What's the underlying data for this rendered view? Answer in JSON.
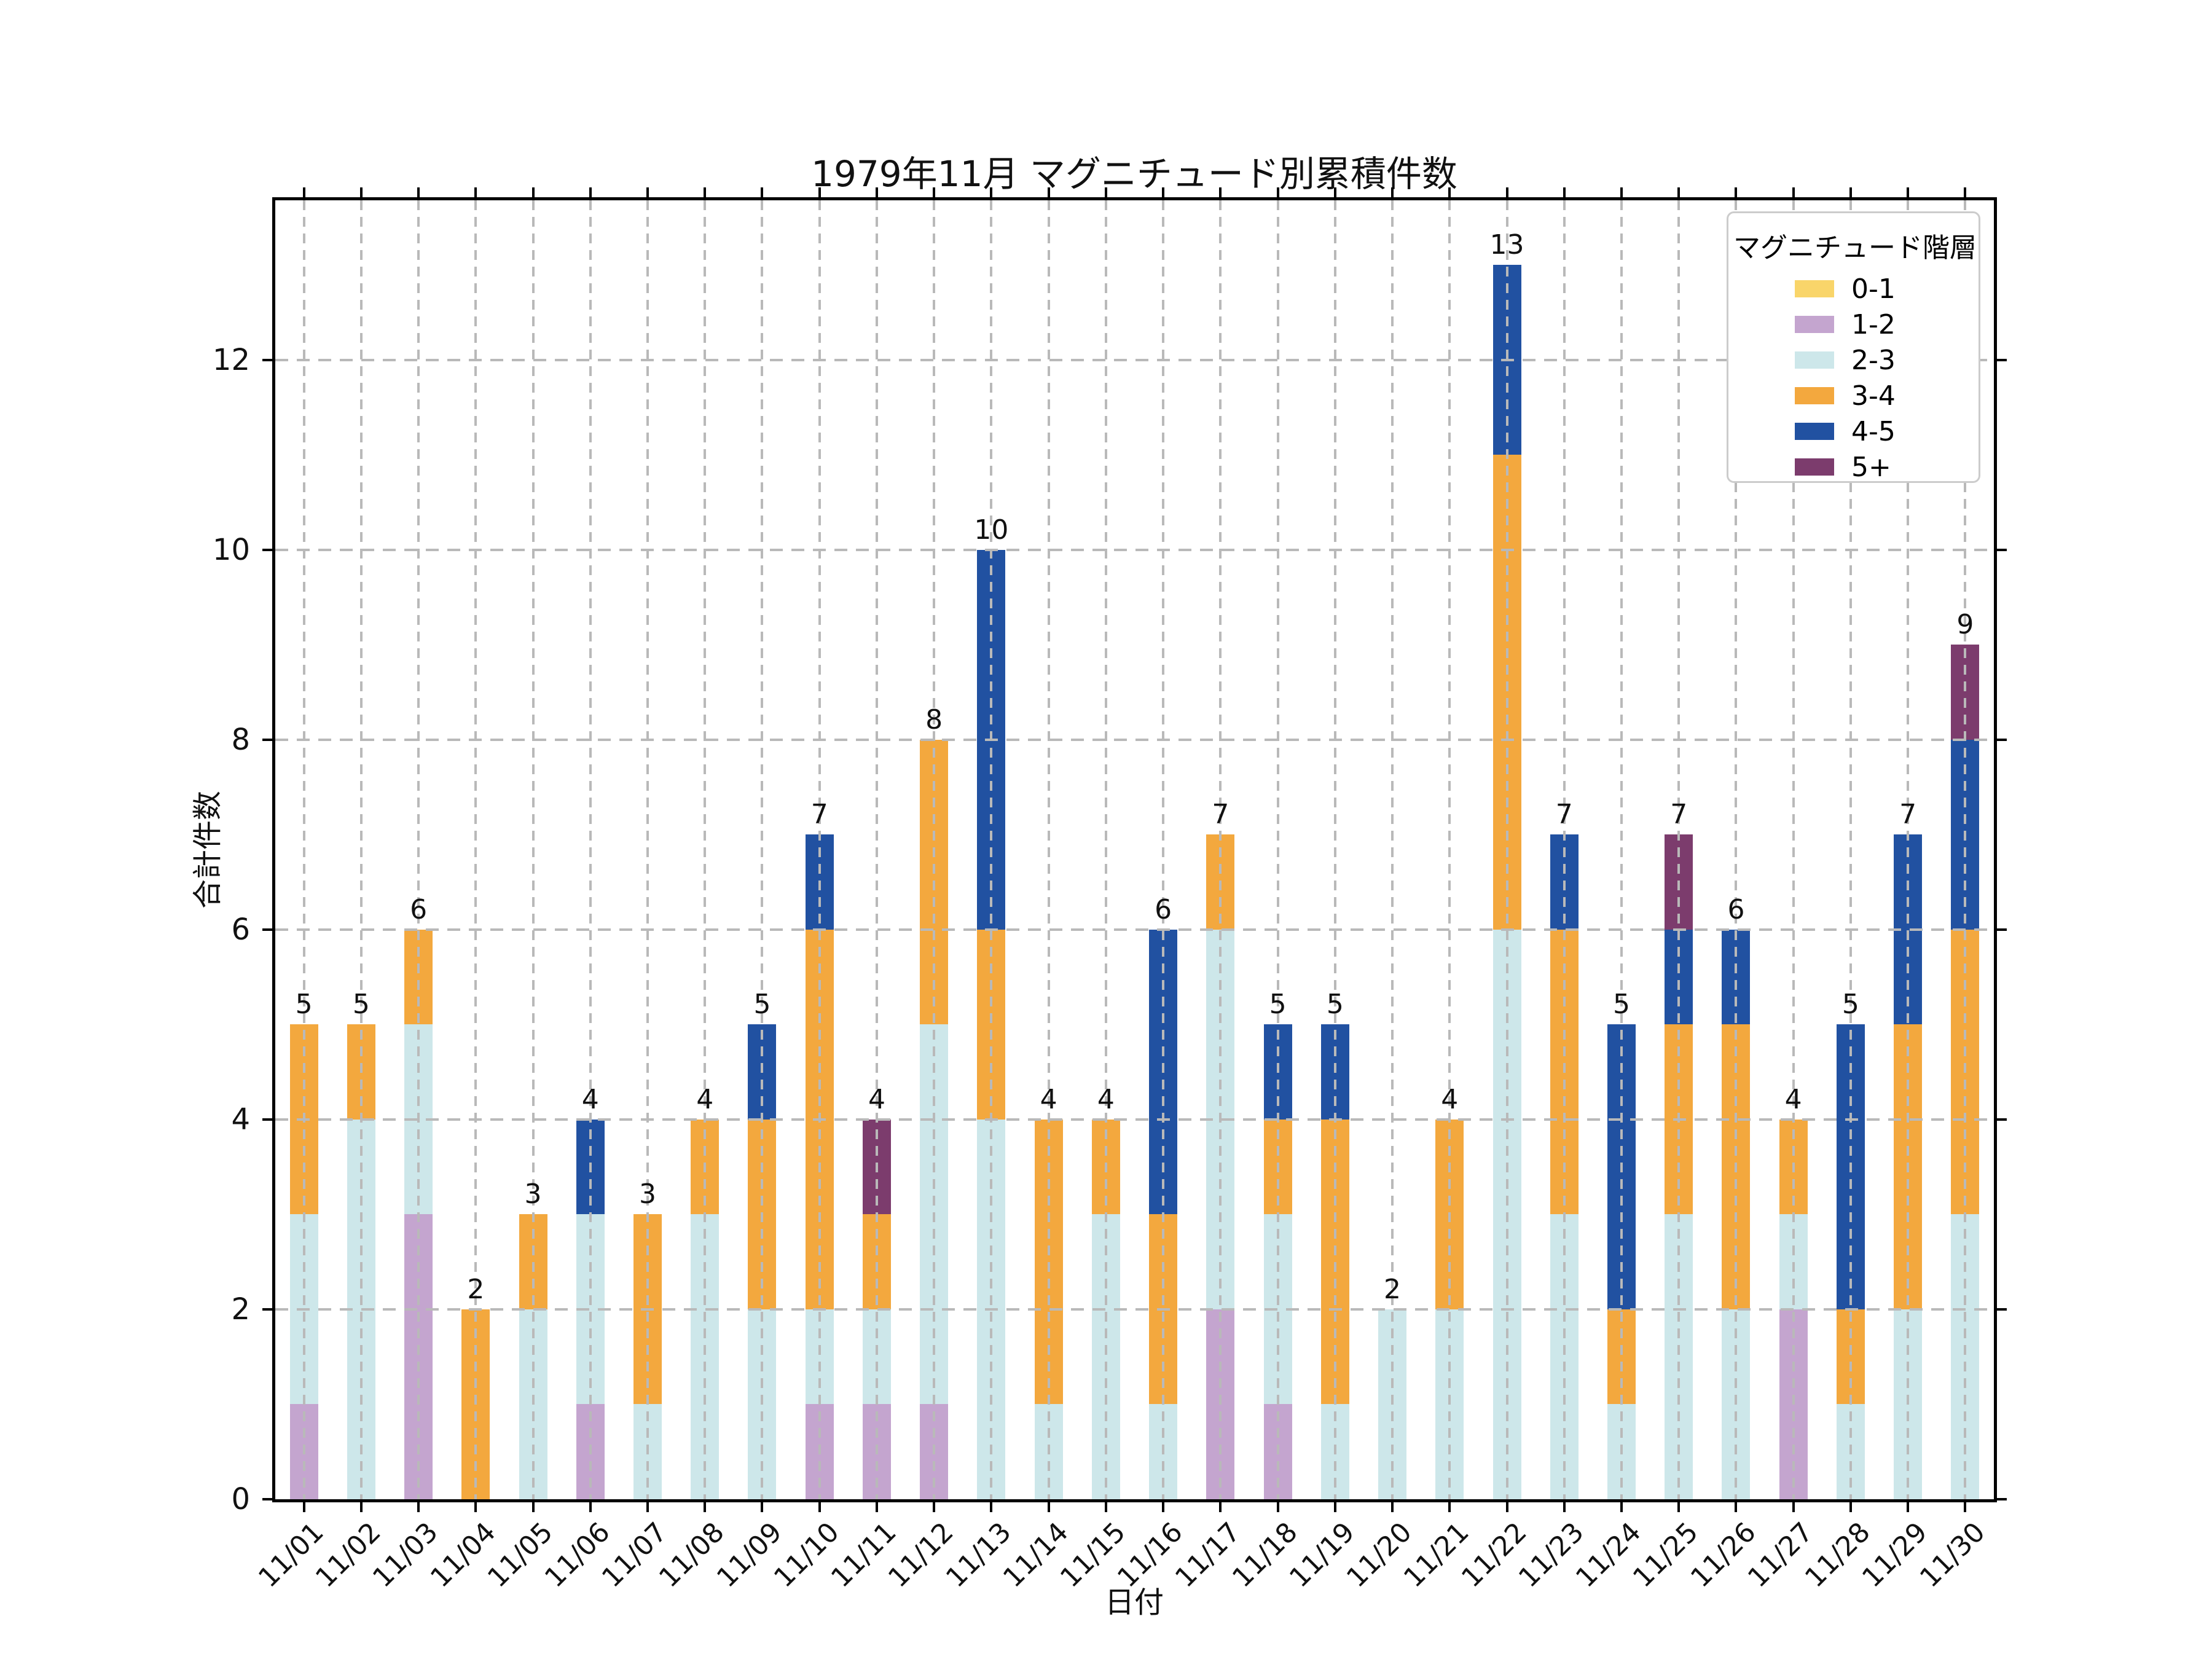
{
  "chart_data": {
    "type": "bar",
    "stacked": true,
    "title": "1979年11月 マグニチュード別累積件数",
    "xlabel": "日付",
    "ylabel": "合計件数",
    "categories": [
      "11/01",
      "11/02",
      "11/03",
      "11/04",
      "11/05",
      "11/06",
      "11/07",
      "11/08",
      "11/09",
      "11/10",
      "11/11",
      "11/12",
      "11/13",
      "11/14",
      "11/15",
      "11/16",
      "11/17",
      "11/18",
      "11/19",
      "11/20",
      "11/21",
      "11/22",
      "11/23",
      "11/24",
      "11/25",
      "11/26",
      "11/27",
      "11/28",
      "11/29",
      "11/30"
    ],
    "series": [
      {
        "name": "0-1",
        "color": "#f9d56a",
        "values": [
          0,
          0,
          0,
          0,
          0,
          0,
          0,
          0,
          0,
          0,
          0,
          0,
          0,
          0,
          0,
          0,
          0,
          0,
          0,
          0,
          0,
          0,
          0,
          0,
          0,
          0,
          0,
          0,
          0,
          0
        ]
      },
      {
        "name": "1-2",
        "color": "#c4a5cf",
        "values": [
          1,
          0,
          3,
          0,
          0,
          1,
          0,
          0,
          0,
          1,
          1,
          1,
          0,
          0,
          0,
          0,
          2,
          1,
          0,
          0,
          0,
          0,
          0,
          0,
          0,
          0,
          2,
          0,
          0,
          0
        ]
      },
      {
        "name": "2-3",
        "color": "#cde7ea",
        "values": [
          2,
          4,
          2,
          0,
          2,
          2,
          1,
          3,
          2,
          1,
          1,
          4,
          4,
          1,
          3,
          1,
          4,
          2,
          1,
          2,
          2,
          6,
          3,
          1,
          3,
          2,
          1,
          1,
          2,
          3
        ]
      },
      {
        "name": "3-4",
        "color": "#f3a83e",
        "values": [
          2,
          1,
          1,
          2,
          1,
          0,
          2,
          1,
          2,
          4,
          1,
          3,
          2,
          3,
          1,
          2,
          1,
          1,
          3,
          0,
          2,
          5,
          3,
          1,
          2,
          3,
          1,
          1,
          3,
          3
        ]
      },
      {
        "name": "4-5",
        "color": "#2151a1",
        "values": [
          0,
          0,
          0,
          0,
          0,
          1,
          0,
          0,
          1,
          1,
          0,
          0,
          4,
          0,
          0,
          3,
          0,
          1,
          1,
          0,
          0,
          2,
          1,
          3,
          1,
          1,
          0,
          3,
          2,
          2
        ]
      },
      {
        "name": "5+",
        "color": "#7c3c6d",
        "values": [
          0,
          0,
          0,
          0,
          0,
          0,
          0,
          0,
          0,
          0,
          1,
          0,
          0,
          0,
          0,
          0,
          0,
          0,
          0,
          0,
          0,
          0,
          0,
          0,
          1,
          0,
          0,
          0,
          0,
          1
        ]
      }
    ],
    "totals": [
      5,
      5,
      6,
      2,
      3,
      4,
      3,
      4,
      5,
      7,
      4,
      8,
      10,
      4,
      4,
      6,
      7,
      5,
      5,
      2,
      4,
      13,
      7,
      5,
      7,
      6,
      4,
      5,
      7,
      9
    ],
    "ylim": [
      0,
      13.68
    ],
    "yticks": [
      0,
      2,
      4,
      6,
      8,
      10,
      12
    ],
    "grid": true,
    "grid_style": "dashed",
    "legend": {
      "title": "マグニチュード階層",
      "position": "upper right",
      "entries": [
        "0-1",
        "1-2",
        "2-3",
        "3-4",
        "4-5",
        "5+"
      ]
    }
  }
}
